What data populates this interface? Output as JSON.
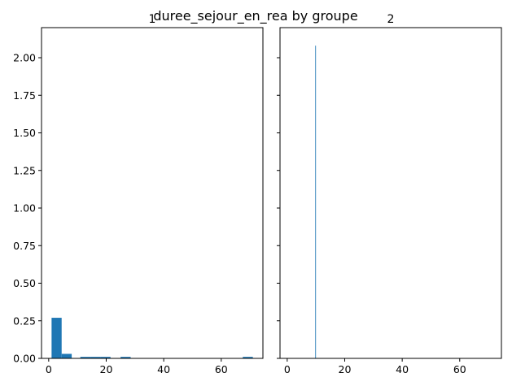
{
  "chart_data": {
    "type": "bar",
    "title": "duree_sejour_en_rea by groupe",
    "shared_y": true,
    "ylim": [
      0,
      2.2
    ],
    "yticks": [
      0.0,
      0.25,
      0.5,
      0.75,
      1.0,
      1.25,
      1.5,
      1.75,
      2.0
    ],
    "ytick_labels": [
      "0.00",
      "0.25",
      "0.50",
      "0.75",
      "1.00",
      "1.25",
      "1.50",
      "1.75",
      "2.00"
    ],
    "panels": [
      {
        "title": "1",
        "xlim": [
          -2.5,
          74.5
        ],
        "xticks": [
          0,
          20,
          40,
          60
        ],
        "xtick_labels": [
          "0",
          "20",
          "40",
          "60"
        ],
        "bars": [
          {
            "x0": 1.0,
            "x1": 4.5,
            "height": 0.27
          },
          {
            "x0": 4.5,
            "x1": 8.0,
            "height": 0.03
          },
          {
            "x0": 11.0,
            "x1": 14.5,
            "height": 0.01
          },
          {
            "x0": 14.5,
            "x1": 18.0,
            "height": 0.01
          },
          {
            "x0": 18.0,
            "x1": 21.5,
            "height": 0.01
          },
          {
            "x0": 25.0,
            "x1": 28.5,
            "height": 0.01
          },
          {
            "x0": 67.5,
            "x1": 71.0,
            "height": 0.01
          }
        ]
      },
      {
        "title": "2",
        "xlim": [
          -2.5,
          74.5
        ],
        "xticks": [
          0,
          20,
          40,
          60
        ],
        "xtick_labels": [
          "0",
          "20",
          "40",
          "60"
        ],
        "bars": [
          {
            "x0": 9.76,
            "x1": 10.0,
            "height": 2.08
          }
        ]
      }
    ]
  }
}
